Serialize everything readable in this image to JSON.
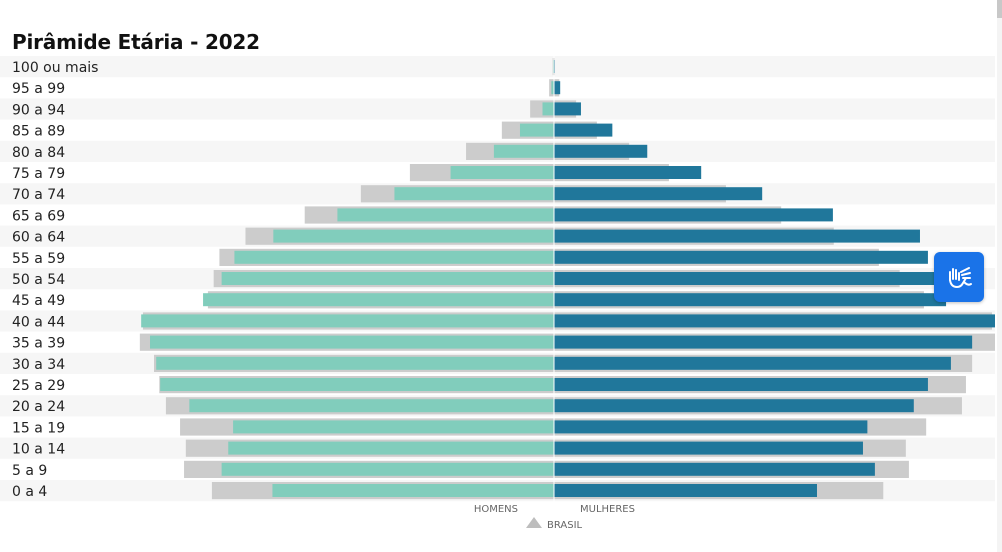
{
  "page": {
    "title": "Pirâmide Etária - 2022"
  },
  "legend": {
    "men": "HOMENS",
    "women": "MULHERES",
    "reference": "BRASIL"
  },
  "accessibility_button": {
    "icon": "sign-language-icon"
  },
  "colors": {
    "men": "#81cdbc",
    "women": "#20779b",
    "reference": "#cccccc",
    "stripe": "#f6f6f6"
  },
  "chart_data": {
    "type": "bar",
    "orientation": "horizontal",
    "title": "Pirâmide Etária - 2022",
    "categories": [
      "100 ou mais",
      "95 a 99",
      "90 a 94",
      "85 a 89",
      "80 a 84",
      "75 a 79",
      "70 a 74",
      "65 a 69",
      "60 a 64",
      "55 a 59",
      "50 a 54",
      "45 a 49",
      "40 a 44",
      "35 a 39",
      "30 a 34",
      "25 a 29",
      "20 a 24",
      "15 a 19",
      "10 a 14",
      "5 a 9",
      "0 a 4"
    ],
    "series": [
      {
        "name": "HOMENS",
        "values": [
          0.2,
          0.6,
          2.6,
          7.7,
          13.6,
          23.4,
          36.1,
          49.0,
          63.5,
          72.3,
          75.2,
          79.4,
          93.4,
          91.4,
          90.0,
          89.1,
          82.5,
          72.6,
          73.7,
          75.2,
          63.7
        ]
      },
      {
        "name": "MULHERES",
        "values": [
          0.2,
          1.4,
          6.1,
          13.2,
          21.1,
          33.3,
          47.1,
          63.1,
          82.8,
          84.6,
          87.8,
          88.7,
          100.0,
          94.6,
          89.8,
          84.6,
          81.4,
          70.9,
          69.9,
          72.6,
          59.5
        ]
      },
      {
        "name": "BRASIL",
        "values": [
          0.3,
          1.1,
          5.4,
          11.8,
          19.9,
          32.6,
          43.7,
          56.4,
          69.8,
          75.7,
          77.0,
          78.3,
          93.0,
          93.7,
          90.5,
          89.3,
          87.8,
          84.6,
          83.3,
          83.7,
          77.4
        ]
      }
    ],
    "series_women_reference": [
      0.2,
      1.2,
      5.0,
      9.7,
      17.0,
      26.0,
      38.9,
      51.4,
      63.3,
      73.5,
      78.2,
      83.7,
      99.1,
      100.0,
      94.6,
      93.2,
      92.3,
      84.2,
      79.6,
      80.3,
      74.5
    ],
    "xlim": [
      -100,
      100
    ],
    "grid": false,
    "legend_position": "bottom-center"
  }
}
